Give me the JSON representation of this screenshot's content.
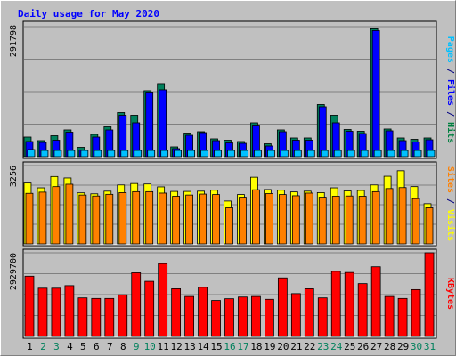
{
  "chart_data": {
    "type": "bar",
    "title": "Daily usage for May 2020",
    "categories": [
      "1",
      "2",
      "3",
      "4",
      "5",
      "6",
      "7",
      "8",
      "9",
      "10",
      "11",
      "12",
      "13",
      "14",
      "15",
      "16",
      "17",
      "18",
      "19",
      "20",
      "21",
      "22",
      "23",
      "24",
      "25",
      "26",
      "27",
      "28",
      "29",
      "30",
      "31"
    ],
    "weekend_days": [
      "2",
      "3",
      "9",
      "10",
      "16",
      "17",
      "23",
      "24",
      "30",
      "31"
    ],
    "panels": [
      {
        "id": "hits",
        "ylabel_parts": [
          {
            "text": "Pages",
            "color": "#00c0ff"
          },
          {
            "text": " / ",
            "color": "#000080"
          },
          {
            "text": "Files",
            "color": "#0000ff"
          },
          {
            "text": " / ",
            "color": "#000080"
          },
          {
            "text": "Hits",
            "color": "#008040"
          }
        ],
        "max_label": "291798",
        "ymax": 291798,
        "series": [
          {
            "name": "Hits",
            "color": "#00805c",
            "values": [
              44000,
              36000,
              47000,
              60000,
              21000,
              50000,
              67000,
              99000,
              93000,
              148000,
              164000,
              22000,
              53000,
              56000,
              40000,
              37000,
              34000,
              76000,
              29000,
              60000,
              42000,
              42000,
              117000,
              93000,
              61000,
              57000,
              287000,
              62000,
              42000,
              39000,
              42000
            ]
          },
          {
            "name": "Files",
            "color": "#0000ff",
            "values": [
              34000,
              32000,
              37000,
              55000,
              15000,
              44000,
              60000,
              93000,
              76000,
              145000,
              150000,
              18000,
              48000,
              54000,
              36000,
              31000,
              30000,
              69000,
              24000,
              56000,
              37000,
              37000,
              112000,
              76000,
              57000,
              52000,
              283000,
              58000,
              36000,
              33000,
              38000
            ]
          },
          {
            "name": "Pages",
            "color": "#00c0ff",
            "values": [
              16000,
              14000,
              14000,
              14000,
              14000,
              14000,
              14000,
              14000,
              14000,
              14000,
              14000,
              14000,
              14000,
              14000,
              14000,
              14000,
              14000,
              14000,
              14000,
              14000,
              14000,
              14000,
              14000,
              14000,
              14000,
              14000,
              14000,
              14000,
              14000,
              14000,
              14000
            ]
          }
        ]
      },
      {
        "id": "visits",
        "ylabel_parts": [
          {
            "text": "Sites",
            "color": "#ff8000"
          },
          {
            "text": " / ",
            "color": "#000080"
          },
          {
            "text": "Visits",
            "color": "#ffff00"
          }
        ],
        "max_label": "3256",
        "ymax": 3256,
        "series": [
          {
            "name": "Visits",
            "color": "#ffff00",
            "values": [
              2530,
              2330,
              2800,
              2740,
              2120,
              2080,
              2190,
              2450,
              2510,
              2490,
              2370,
              2180,
              2180,
              2190,
              2230,
              1780,
              2050,
              2770,
              2260,
              2230,
              2160,
              2190,
              2130,
              2330,
              2200,
              2220,
              2450,
              2810,
              3040,
              2380,
              1670
            ]
          },
          {
            "name": "Sites",
            "color": "#ff8000",
            "values": [
              2100,
              2150,
              2380,
              2480,
              2030,
              1990,
              2060,
              2130,
              2170,
              2170,
              2110,
              1980,
              2030,
              2070,
              2050,
              1500,
              1940,
              2250,
              2090,
              2050,
              2000,
              2110,
              1940,
              1980,
              1990,
              1980,
              2170,
              2300,
              2340,
              1880,
              1500
            ]
          }
        ]
      },
      {
        "id": "kbytes",
        "ylabel_parts": [
          {
            "text": "KBytes",
            "color": "#ff0000"
          }
        ],
        "max_label": "2929700",
        "ymax": 2929700,
        "series": [
          {
            "name": "KBytes",
            "color": "#ff0000",
            "values": [
              2110000,
              1690000,
              1690000,
              1780000,
              1350000,
              1330000,
              1330000,
              1460000,
              2230000,
              1930000,
              2550000,
              1670000,
              1400000,
              1720000,
              1260000,
              1320000,
              1380000,
              1400000,
              1300000,
              2050000,
              1500000,
              1670000,
              1350000,
              2280000,
              2240000,
              1850000,
              2440000,
              1400000,
              1330000,
              1640000,
              2930000
            ]
          }
        ]
      }
    ]
  }
}
